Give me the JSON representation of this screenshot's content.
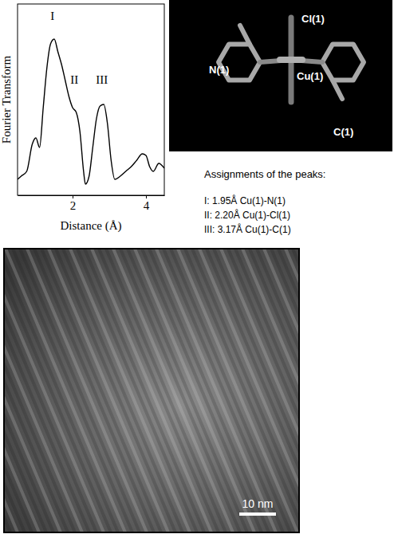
{
  "chart_data": {
    "type": "line",
    "color": "#000000",
    "x_label": "Distance (Å)",
    "y_label": "Fourier Transform",
    "x": [
      0.5,
      0.6,
      0.75,
      0.9,
      1.0,
      1.1,
      1.2,
      1.3,
      1.4,
      1.5,
      1.6,
      1.7,
      1.8,
      1.9,
      2.0,
      2.1,
      2.2,
      2.3,
      2.35,
      2.45,
      2.55,
      2.65,
      2.75,
      2.85,
      2.95,
      3.05,
      3.15,
      3.3,
      3.45,
      3.6,
      3.75,
      3.9,
      4.0,
      4.1,
      4.2,
      4.35,
      4.5
    ],
    "values": [
      0.1,
      0.12,
      0.15,
      0.32,
      0.36,
      0.3,
      0.55,
      0.8,
      0.95,
      0.98,
      0.9,
      0.82,
      0.72,
      0.62,
      0.55,
      0.52,
      0.4,
      0.15,
      0.07,
      0.12,
      0.3,
      0.48,
      0.56,
      0.57,
      0.45,
      0.22,
      0.1,
      0.12,
      0.15,
      0.18,
      0.22,
      0.26,
      0.25,
      0.18,
      0.15,
      0.2,
      0.17
    ],
    "xlim": [
      0.5,
      4.5
    ],
    "xticks": [
      2,
      4
    ],
    "ylim": [
      0,
      1.2
    ],
    "tick_labels": "x",
    "annotations": [
      {
        "text": "I",
        "x": 1.45,
        "y": 1.1
      },
      {
        "text": "II",
        "x": 2.05,
        "y": 0.7
      },
      {
        "text": "III",
        "x": 2.8,
        "y": 0.7
      }
    ]
  },
  "structure": {
    "labels": [
      "Cl(1)",
      "N(1)",
      "Cu(1)",
      "C(1)"
    ]
  },
  "assignments": {
    "title": "Assignments of the peaks:",
    "items": [
      "I: 1.95Å Cu(1)-N(1)",
      "II: 2.20Å Cu(1)-Cl(1)",
      "III: 3.17Å Cu(1)-C(1)"
    ]
  },
  "micrograph": {
    "scale_bar": "10 nm"
  }
}
